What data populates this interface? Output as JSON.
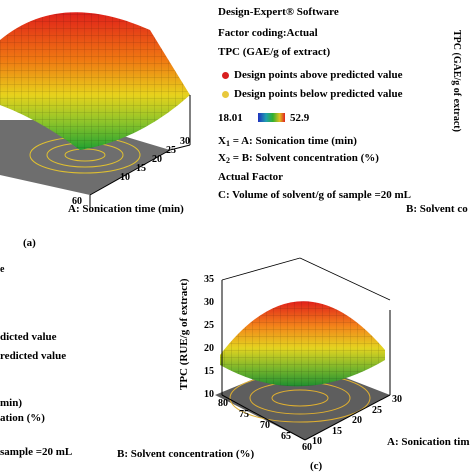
{
  "legend_a": {
    "software": "Design-Expert® Software",
    "coding": "Factor coding:Actual",
    "response": "TPC (GAE/g of extract)",
    "above": "Design points above predicted value",
    "below": "Design points below predicted value",
    "scale_min": "18.01",
    "scale_max": "52.9",
    "x1_label": "X",
    "x1_sub": "1",
    "x1_text": " = A: Sonication time (min)",
    "x2_label": "X",
    "x2_sub": "2",
    "x2_text": " = B: Solvent concentration (%)",
    "actual_factor": "Actual Factor",
    "factor_c": "C: Volume of solvent/g of sample =20 mL",
    "above_color": "#d81e1e",
    "below_color": "#e8c83c"
  },
  "legend_c_partial": {
    "above_tail": "dicted value",
    "below_tail": "redicted value",
    "x1_tail": "min)",
    "x2_tail": "ation (%)",
    "factor_tail": "sample =20 mL"
  },
  "panel_a": {
    "xlabel": "A: Sonication time (min)",
    "ytick_labels": [
      "60"
    ],
    "xtick_labels": [
      "10",
      "15",
      "20",
      "25",
      "30"
    ],
    "caption": "(a)"
  },
  "panel_b_partial": {
    "xlabel_tail": "B: Solvent co",
    "ylabel_tail": "TPC (GAE/g of extract)"
  },
  "panel_c": {
    "ylabel": "TPC (RUE/g of extract)",
    "xlabel": "A: Sonication tim",
    "blabel": "B: Solvent concentration (%)",
    "caption": "(c)"
  },
  "chart_data": [
    {
      "type": "surface",
      "title": "",
      "response": "TPC (GAE/g of extract)",
      "xlabel": "A: Sonication time (min)",
      "x_ticks": [
        10,
        15,
        20,
        25,
        30
      ],
      "ylabel": "B: Solvent concentration (%)",
      "y_ticks": [
        60
      ],
      "color_range": [
        18.01,
        52.9
      ]
    },
    {
      "type": "surface",
      "title": "",
      "zlabel": "TPC (RUE/g of extract)",
      "z_ticks": [
        10,
        15,
        20,
        25,
        30,
        35
      ],
      "xlabel": "A: Sonication time (min)",
      "x_ticks": [
        10,
        15,
        20,
        25,
        30
      ],
      "ylabel": "B: Solvent concentration (%)",
      "y_ticks": [
        60,
        65,
        70,
        75,
        80
      ]
    }
  ]
}
